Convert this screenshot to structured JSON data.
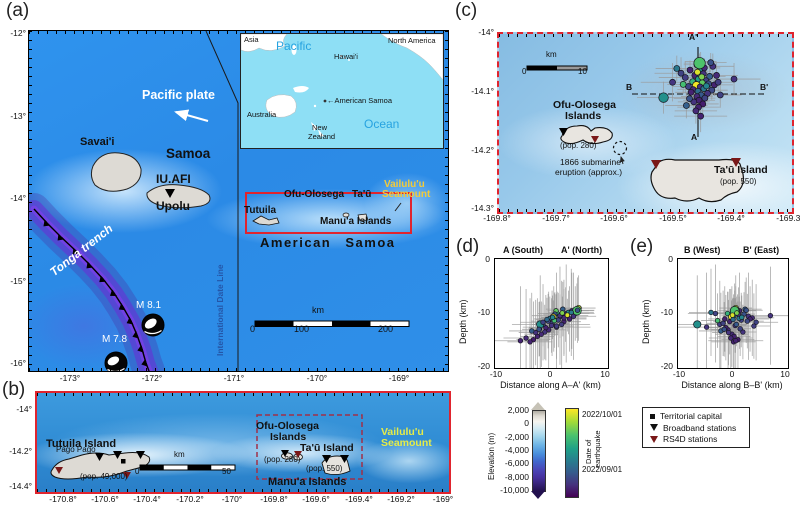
{
  "figure": {
    "panels": {
      "a": "(a)",
      "b": "(b)",
      "c": "(c)",
      "d": "(d)",
      "e": "(e)"
    }
  },
  "colors": {
    "highlight_box": "#e0242e",
    "seamount_label_a": "#f2cb3a",
    "seamount_label_b": "#e6ec48",
    "rs4d_marker": "#7a1818",
    "date_line_text": "#2456a8"
  },
  "panel_a": {
    "y_ticks": [
      "-12°",
      "-13°",
      "-14°",
      "-15°",
      "-16°"
    ],
    "x_ticks": [
      "-173°",
      "-172°",
      "-171°",
      "-170°",
      "-169°"
    ],
    "labels": {
      "pacific_plate": "Pacific plate",
      "savaii": "Savai'i",
      "samoa": "Samoa",
      "station": "IU.AFI",
      "upolu": "Upolu",
      "date_line": "International Date Line",
      "tonga_trench": "Tonga trench",
      "m81": "M 8.1",
      "m78": "M 7.8",
      "tutuila": "Tutuila",
      "ofu_olosega": "Ofu-Olosega",
      "tau": "Ta'ū",
      "manua": "Manu'a Islands",
      "vailuluu_1": "Vailulu'u",
      "vailuluu_2": "Seamount",
      "american_samoa": "American Samoa",
      "scale_unit": "km",
      "scale_0": "0",
      "scale_100": "100",
      "scale_200": "200"
    },
    "inset": {
      "asia": "Asia",
      "pacific": "Pacific",
      "hawaii": "Hawai'i",
      "north_america": "North America",
      "american_samoa": "←American Samoa",
      "australia": "Australia",
      "new_zealand_1": "New",
      "new_zealand_2": "Zealand",
      "ocean": "Ocean"
    }
  },
  "panel_b": {
    "y_ticks": [
      "-14°",
      "-14.2°",
      "-14.4°"
    ],
    "x_ticks": [
      "-170.8°",
      "-170.6°",
      "-170.4°",
      "-170.2°",
      "-170°",
      "-169.8°",
      "-169.6°",
      "-169.4°",
      "-169.2°",
      "-169°"
    ],
    "labels": {
      "tutuila_island": "Tutuila Island",
      "pago_pago": "Pago Pago",
      "pop_tutuila": "(pop. 49,000)",
      "scale_unit": "km",
      "scale_0": "0",
      "scale_50": "50",
      "ofu_1": "Ofu-Olosega",
      "ofu_2": "Islands",
      "pop_ofu": "(pop. 280)",
      "tau_island": "Ta'ū Island",
      "pop_tau": "(pop. 550)",
      "manua": "Manu'a Islands",
      "vailuluu_1": "Vailulu'u",
      "vailuluu_2": "Seamount"
    }
  },
  "panel_c": {
    "y_ticks": [
      "-14°",
      "-14.1°",
      "-14.2°",
      "-14.3°"
    ],
    "x_ticks": [
      "-169.8°",
      "-169.7°",
      "-169.6°",
      "-169.5°",
      "-169.4°",
      "-169.3°"
    ],
    "labels": {
      "scale_unit": "km",
      "scale_0": "0",
      "scale_10": "10",
      "ofu_1": "Ofu-Olosega",
      "ofu_2": "Islands",
      "pop_ofu": "(pop. 280)",
      "eruption_1": "1866 submarine",
      "eruption_2": "eruption (approx.)",
      "tau_island": "Ta'ū Island",
      "pop_tau": "(pop. 550)",
      "a": "A",
      "a_prime": "A'",
      "b": "B",
      "b_prime": "B'"
    }
  },
  "panel_d": {
    "title_left": "A (South)",
    "title_right": "A' (North)",
    "ylabel": "Depth (km)",
    "xlabel": "Distance along A–A' (km)",
    "y_ticks": [
      "0",
      "-10",
      "-20"
    ],
    "x_ticks": [
      "-10",
      "0",
      "10"
    ]
  },
  "panel_e": {
    "title_left": "B (West)",
    "title_right": "B' (East)",
    "ylabel": "Depth (km)",
    "xlabel": "Distance along B–B' (km)",
    "y_ticks": [
      "0",
      "-10",
      "-20"
    ],
    "x_ticks": [
      "-10",
      "0",
      "10"
    ]
  },
  "legend": {
    "elevation": {
      "title": "Elevation (m)",
      "ticks": [
        "2,000",
        "0",
        "-2,000",
        "-4,000",
        "-6,000",
        "-8,000",
        "-10,000"
      ]
    },
    "date": {
      "title_1": "Date of",
      "title_2": "earthquake",
      "top": "2022/10/01",
      "bottom": "2022/09/01",
      "colormap": [
        "#440154",
        "#46327e",
        "#365c8d",
        "#277f8e",
        "#1fa187",
        "#4ac16d",
        "#a0da39",
        "#fde725"
      ]
    },
    "stations": [
      {
        "marker": "square",
        "label": "Territorial capital"
      },
      {
        "marker": "triangle-down-black",
        "label": "Broadband stations"
      },
      {
        "marker": "triangle-down-darkred",
        "label": "RS4D stations"
      }
    ]
  },
  "earthquakes": {
    "description": "Relocated hypocenters of the 2022 Ta'ū swarm. Fields per point: [east_km, north_km, depth_km, date_fraction_2022-09-01_to_2022-10-01, horiz_err_km, vert_err_km, size]. Origin at lon -169.46, lat -14.09.",
    "points": [
      [
        0.5,
        4.8,
        9,
        0.9,
        3,
        6,
        1.2
      ],
      [
        -0.2,
        4.2,
        10,
        0.55,
        2.5,
        5,
        1
      ],
      [
        1.2,
        3.6,
        9.5,
        0.12,
        3,
        7,
        1
      ],
      [
        2.8,
        3.9,
        10.5,
        0.15,
        4,
        8,
        1
      ],
      [
        -1.5,
        3.2,
        11,
        0.1,
        3,
        6,
        1
      ],
      [
        -3.2,
        2.6,
        10,
        0.2,
        5,
        9,
        1
      ],
      [
        0.3,
        3,
        9.8,
        0.5,
        2,
        4,
        1
      ],
      [
        1,
        2.5,
        10.2,
        0.15,
        2,
        5,
        1
      ],
      [
        -0.6,
        2.2,
        11.5,
        0.1,
        3,
        6,
        1
      ],
      [
        2.2,
        2,
        9.2,
        0.3,
        3,
        5,
        1
      ],
      [
        3.5,
        2.2,
        10.8,
        0.12,
        4,
        7,
        1
      ],
      [
        -2.4,
        1.8,
        12,
        0.18,
        5,
        8,
        1
      ],
      [
        0.1,
        1.5,
        10.5,
        0.55,
        2,
        4,
        1
      ],
      [
        1.5,
        1.2,
        11.2,
        0.2,
        2.5,
        5,
        1
      ],
      [
        -1,
        1,
        10,
        0.65,
        2,
        4,
        1
      ],
      [
        -4.8,
        0.9,
        12.5,
        0.15,
        6,
        10,
        1
      ],
      [
        0.8,
        0.8,
        9.5,
        0.75,
        1.5,
        3,
        1
      ],
      [
        2,
        0.6,
        10.1,
        0.25,
        2,
        4,
        1
      ],
      [
        3.1,
        0.4,
        11,
        0.1,
        3.5,
        6,
        1
      ],
      [
        -0.3,
        0.3,
        10.6,
        0.98,
        1.5,
        3,
        1.3
      ],
      [
        -1.8,
        0.1,
        11.8,
        0.2,
        3,
        6,
        1
      ],
      [
        0.4,
        0,
        12.2,
        0.15,
        2,
        5,
        1
      ],
      [
        1.1,
        -0.3,
        10.9,
        0.4,
        2,
        4,
        1
      ],
      [
        -0.9,
        -0.5,
        13,
        0.12,
        3,
        7,
        1
      ],
      [
        2.6,
        -0.6,
        11.4,
        0.22,
        3,
        5,
        1
      ],
      [
        0.3,
        4.5,
        9.5,
        0.72,
        3,
        5,
        1.9
      ],
      [
        0,
        -0.8,
        11.1,
        0.35,
        2,
        4,
        1
      ],
      [
        -1.3,
        -1,
        12.6,
        0.1,
        3,
        6,
        1
      ],
      [
        1.8,
        -1.2,
        13.4,
        0.15,
        2.5,
        5,
        1
      ],
      [
        0.6,
        -1.5,
        12,
        0.28,
        2,
        4,
        1
      ],
      [
        -0.2,
        -1.8,
        13.8,
        0.12,
        3,
        6,
        1
      ],
      [
        1.3,
        -2.1,
        12.8,
        0.2,
        2,
        5,
        1
      ],
      [
        0.2,
        -2.5,
        14.2,
        0.1,
        3,
        7,
        1
      ],
      [
        -0.8,
        -2.8,
        13.5,
        0.15,
        3,
        6,
        1
      ],
      [
        0.9,
        -3.2,
        14.8,
        0.08,
        3,
        7,
        1
      ],
      [
        0.1,
        -3.8,
        15.2,
        0.1,
        4,
        8,
        1
      ],
      [
        -0.4,
        -4.5,
        14.5,
        0.12,
        4,
        9,
        1
      ],
      [
        0.5,
        -5.5,
        15,
        0.1,
        5,
        10,
        1
      ],
      [
        -2.2,
        -3.5,
        13.2,
        0.3,
        4,
        7,
        1
      ],
      [
        -6.5,
        -2,
        12,
        0.5,
        5,
        9,
        1.6
      ],
      [
        4.2,
        -1.5,
        11.6,
        0.2,
        4,
        7,
        1
      ],
      [
        6.8,
        1.5,
        10.4,
        0.15,
        5,
        9,
        1
      ],
      [
        -4,
        3.5,
        9.8,
        0.4,
        4,
        8,
        1
      ],
      [
        2.4,
        4.6,
        9.4,
        0.25,
        3,
        6,
        1
      ],
      [
        -0.1,
        2.8,
        10.3,
        0.95,
        2,
        3,
        1
      ],
      [
        0.7,
        1.9,
        9.9,
        0.8,
        2,
        3,
        1
      ],
      [
        -2.8,
        0.5,
        11.3,
        0.7,
        3,
        5,
        1
      ],
      [
        1.6,
        0.2,
        10.7,
        0.45,
        2,
        4,
        1
      ],
      [
        3.8,
        0.9,
        12.3,
        0.18,
        3,
        6,
        1
      ],
      [
        -1.6,
        -2.2,
        12.9,
        0.25,
        3,
        5,
        1
      ]
    ]
  }
}
